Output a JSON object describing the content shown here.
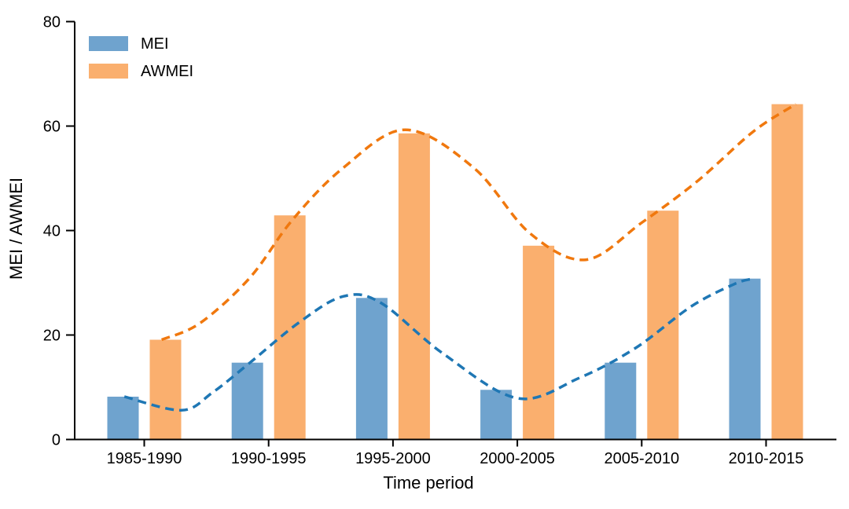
{
  "chart_data": {
    "type": "bar",
    "title": "",
    "xlabel": "Time period",
    "ylabel": "MEI / AWMEI",
    "categories": [
      "1985-1990",
      "1990-1995",
      "1995-2000",
      "2000-2005",
      "2005-2010",
      "2010-2015"
    ],
    "series": [
      {
        "name": "MEI",
        "bar_color": "#6FA3CE",
        "line_color": "#1F77B4",
        "values": [
          8.2,
          14.7,
          27.1,
          9.5,
          14.7,
          30.8
        ],
        "trend": [
          [
            -0.16,
            8.2
          ],
          [
            0.3,
            5.6
          ],
          [
            0.55,
            9.0
          ],
          [
            0.85,
            14.7
          ],
          [
            1.25,
            22.5
          ],
          [
            1.6,
            27.4
          ],
          [
            1.9,
            26.2
          ],
          [
            2.4,
            16.5
          ],
          [
            3.0,
            7.9
          ],
          [
            3.5,
            11.8
          ],
          [
            3.95,
            17.5
          ],
          [
            4.4,
            25.5
          ],
          [
            4.75,
            29.8
          ],
          [
            4.9,
            30.8
          ]
        ]
      },
      {
        "name": "AWMEI",
        "bar_color": "#FAAF6E",
        "line_color": "#F0780E",
        "values": [
          19.1,
          42.9,
          58.6,
          37.1,
          43.8,
          64.2
        ],
        "trend": [
          [
            0.14,
            19.1
          ],
          [
            0.45,
            22.3
          ],
          [
            0.85,
            31.0
          ],
          [
            1.19,
            42.0
          ],
          [
            1.6,
            52.0
          ],
          [
            2.1,
            59.3
          ],
          [
            2.65,
            52.0
          ],
          [
            3.1,
            39.5
          ],
          [
            3.55,
            34.4
          ],
          [
            4.0,
            41.5
          ],
          [
            4.45,
            49.5
          ],
          [
            4.9,
            59.0
          ],
          [
            5.24,
            64.2
          ]
        ]
      }
    ],
    "ylim": [
      0,
      80
    ],
    "yticks": [
      0,
      20,
      40,
      60,
      80
    ],
    "grid": false,
    "legend_position": "top-left",
    "trend_style": "dashed",
    "axis_color": "#000000"
  }
}
